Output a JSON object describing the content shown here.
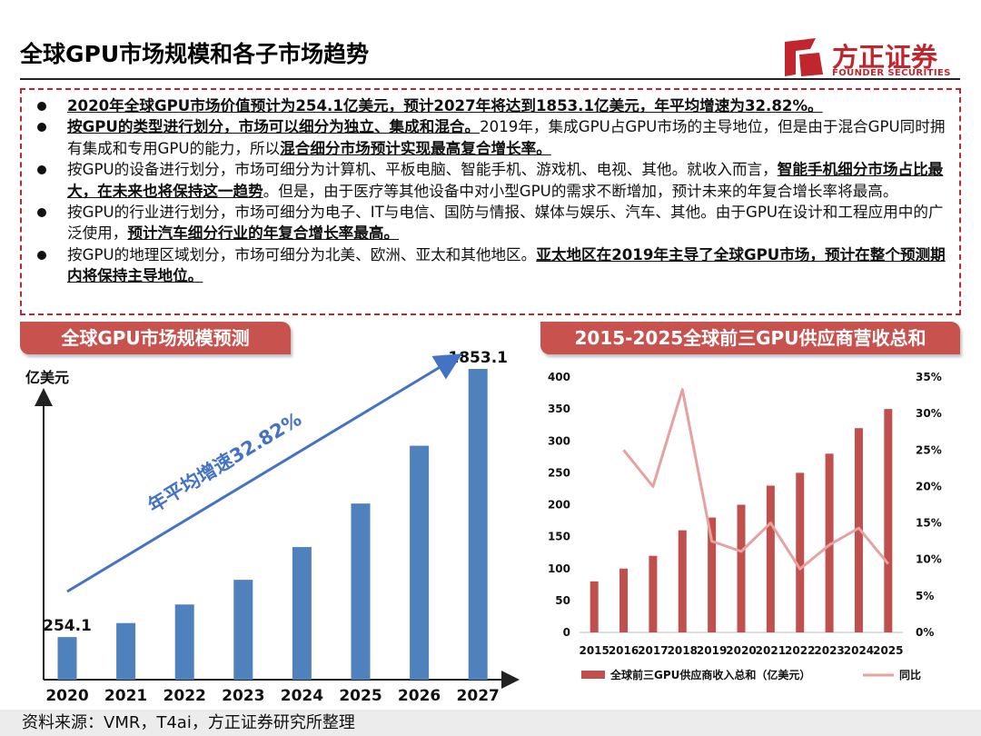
{
  "header": {
    "title": "全球GPU市场规模和各子市场趋势"
  },
  "logo": {
    "cn": "方正证券",
    "en": "FOUNDER SECURITIES"
  },
  "summary": [
    [
      {
        "t": "2020年全球GPU市场价值预计为254.1亿美元，预计2027年将达到1853.1亿美元，年平均增速为32.82%。",
        "b": true
      }
    ],
    [
      {
        "t": "按GPU的类型进行划分，市场可以细分为独立、集成和混合。",
        "b": true
      },
      {
        "t": "2019年，集成GPU占GPU市场的主导地位，但是由于混合GPU同时拥有集成和专用GPU的能力，所以",
        "b": false
      },
      {
        "t": "混合细分市场预计实现最高复合增长率。",
        "b": true
      }
    ],
    [
      {
        "t": "按GPU的设备进行划分，市场可细分为计算机、平板电脑、智能手机、游戏机、电视、其他。就收入而言，",
        "b": false
      },
      {
        "t": "智能手机细分市场占比最大，在未来也将保持这一趋势",
        "b": true
      },
      {
        "t": "。但是，由于医疗等其他设备中对小型GPU的需求不断增加，预计未来的年复合增长率将最高。",
        "b": false
      }
    ],
    [
      {
        "t": "按GPU的行业进行划分，市场可细分为电子、IT与电信、国防与情报、媒体与娱乐、汽车、其他。由于GPU在设计和工程应用中的广泛使用，",
        "b": false
      },
      {
        "t": "预计汽车细分行业的年复合增长率最高。",
        "b": true
      }
    ],
    [
      {
        "t": "按GPU的地理区域划分，市场可细分为北美、欧洲、亚太和其他地区。",
        "b": false
      },
      {
        "t": "亚太地区在2019年主导了全球GPU市场，预计在整个预测期内将保持主导地位。",
        "b": true
      }
    ]
  ],
  "banners": {
    "left": "全球GPU市场规模预测",
    "right": "2015-2025全球前三GPU供应商营收总和"
  },
  "source": "资料来源：VMR，T4ai，方正证券研究所整理",
  "chart_data": [
    {
      "type": "bar",
      "title": "全球GPU市场规模预测",
      "ylabel": "亿美元",
      "categories": [
        "2020",
        "2021",
        "2022",
        "2023",
        "2024",
        "2025",
        "2026",
        "2027"
      ],
      "values": [
        254.1,
        337.5,
        448.3,
        595.4,
        790.8,
        1050.3,
        1395.0,
        1853.1
      ],
      "data_labels": {
        "2020": "254.1",
        "2027": "1853.1"
      },
      "annotation": "年平均增速32.82%",
      "colors": {
        "bar": "#4f81bd",
        "arrow": "#4472c4"
      }
    },
    {
      "type": "bar",
      "title": "2015-2025全球前三GPU供应商营收总和",
      "categories": [
        "2015",
        "2016",
        "2017",
        "2018",
        "2019",
        "2020",
        "2021",
        "2022",
        "2023",
        "2024",
        "2025"
      ],
      "series": [
        {
          "name": "全球前三GPU供应商收入总和（亿美元）",
          "type": "bar",
          "axis": "left",
          "values": [
            80,
            100,
            120,
            160,
            180,
            200,
            230,
            250,
            280,
            320,
            350
          ],
          "color": "#c0504d"
        },
        {
          "name": "同比",
          "type": "line",
          "axis": "right",
          "values": [
            null,
            25.0,
            20.0,
            33.3,
            12.5,
            11.1,
            15.0,
            8.7,
            12.0,
            14.3,
            9.4
          ],
          "color": "#e6a1a0"
        }
      ],
      "ylim": [
        0,
        400
      ],
      "yticks": [
        0,
        50,
        100,
        150,
        200,
        250,
        300,
        350,
        400
      ],
      "y2lim": [
        0,
        35
      ],
      "y2ticks": [
        "0%",
        "5%",
        "10%",
        "15%",
        "20%",
        "25%",
        "30%",
        "35%"
      ],
      "legend": "bottom"
    }
  ]
}
